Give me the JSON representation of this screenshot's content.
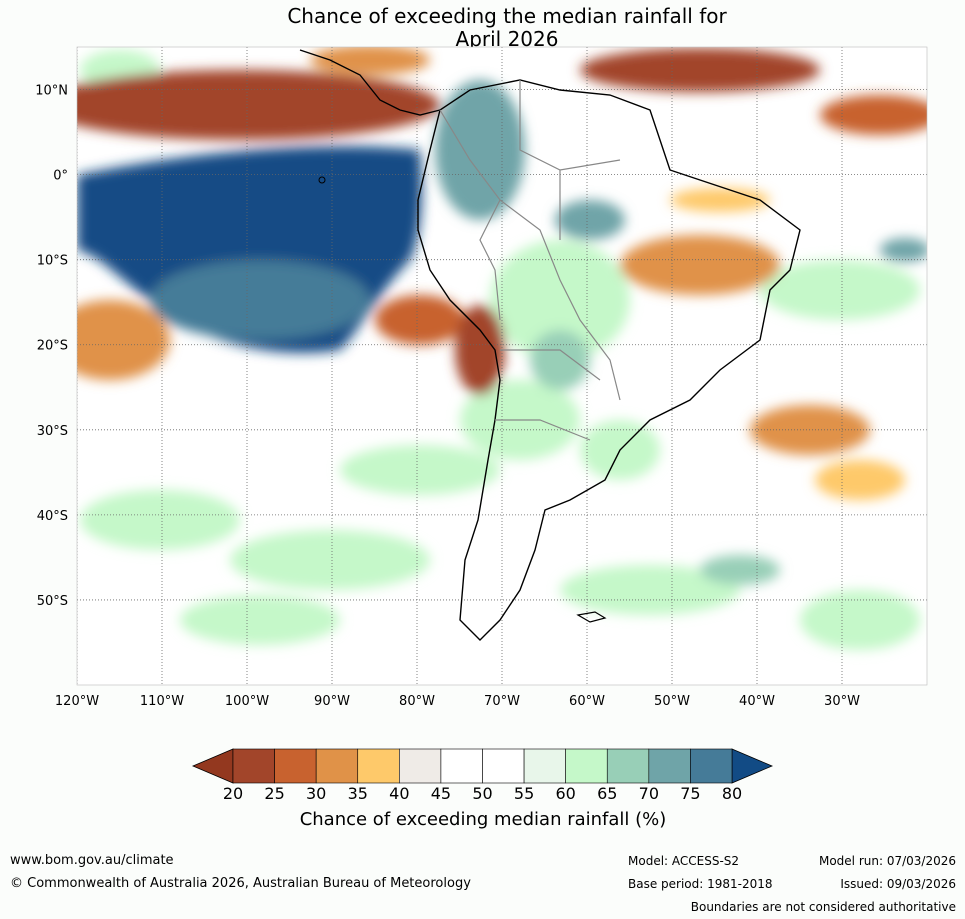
{
  "title_line1": "Chance of exceeding the median rainfall for",
  "title_line2": "April 2026",
  "lat_labels": [
    "10°N",
    "0°",
    "10°S",
    "20°S",
    "30°S",
    "40°S",
    "50°S"
  ],
  "lat_values": [
    10,
    0,
    -10,
    -20,
    -30,
    -40,
    -50
  ],
  "lon_labels": [
    "120°W",
    "110°W",
    "100°W",
    "90°W",
    "80°W",
    "70°W",
    "60°W",
    "50°W",
    "40°W",
    "30°W"
  ],
  "lon_values": [
    -120,
    -110,
    -100,
    -90,
    -80,
    -70,
    -60,
    -50,
    -40,
    -30
  ],
  "map_extent": {
    "lon_min": -120,
    "lon_max": -20,
    "lat_min": -60,
    "lat_max": 15
  },
  "colorbar": {
    "ticks": [
      "20",
      "25",
      "30",
      "35",
      "40",
      "45",
      "50",
      "55",
      "60",
      "65",
      "70",
      "75",
      "80"
    ],
    "colors": [
      "#a2452a",
      "#c8622f",
      "#e09248",
      "#fec96a",
      "#efebe7",
      "#ffffff",
      "#ffffff",
      "#e8f6ea",
      "#c5f8c9",
      "#98cfb7",
      "#6fa4a8",
      "#457b98"
    ],
    "under_color": "#93381f",
    "over_color": "#124b85",
    "label": "Chance of exceeding median rainfall (%)"
  },
  "footer": {
    "website": "www.bom.gov.au/climate",
    "copyright": "© Commonwealth of Australia 2026, Australian Bureau of Meteorology",
    "model": "Model: ACCESS-S2",
    "base_period": "Base period: 1981-2018",
    "model_run": "Model run: 07/03/2026",
    "issued": "Issued: 09/03/2026",
    "disclaimer": "Boundaries are not considered authoritative"
  }
}
